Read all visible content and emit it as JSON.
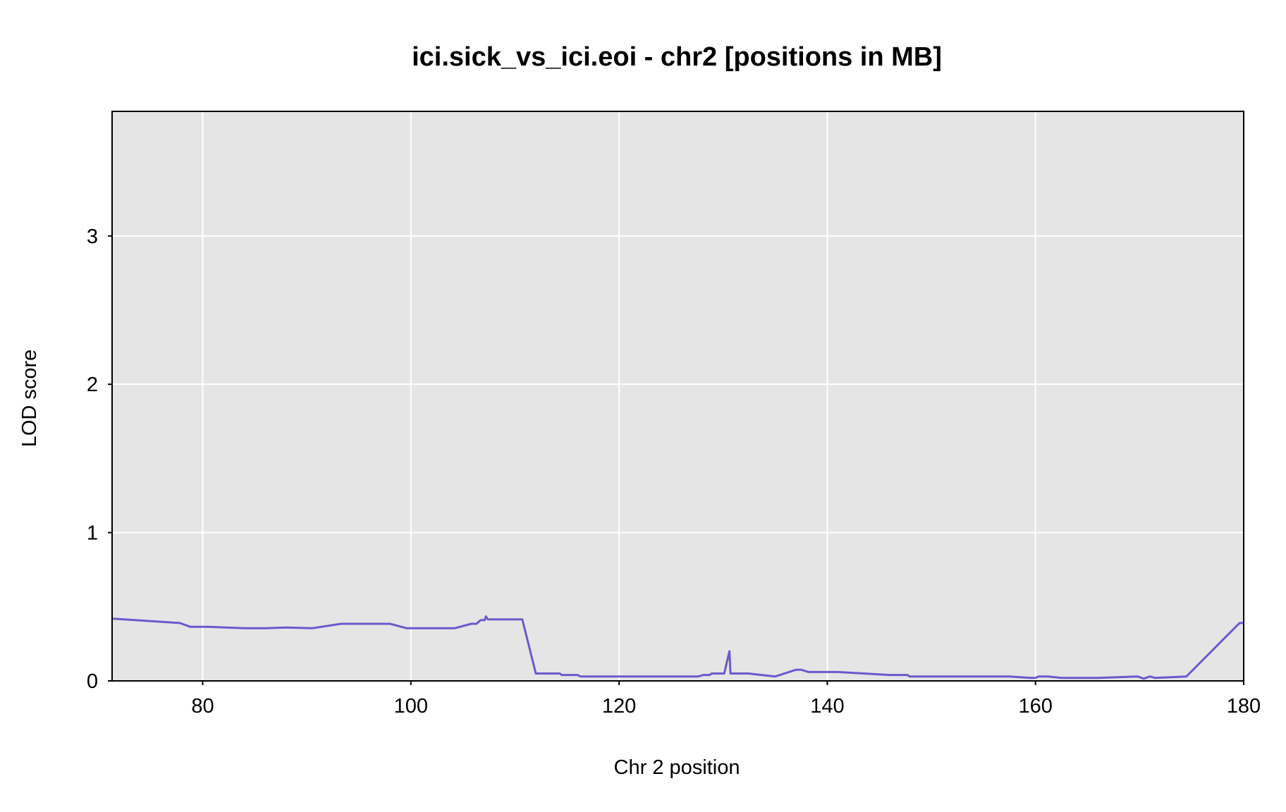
{
  "chart_data": {
    "type": "line",
    "title": "ici.sick_vs_ici.eoi - chr2 [positions in MB]",
    "xlabel": "Chr 2 position",
    "ylabel": "LOD score",
    "xlim": [
      71.3,
      180
    ],
    "ylim": [
      0,
      3.84
    ],
    "x_ticks": [
      80,
      100,
      120,
      140,
      160,
      180
    ],
    "y_ticks": [
      0,
      1,
      2,
      3
    ],
    "grid": true,
    "colors": {
      "panel_background": "#e5e5e5",
      "grid": "#ffffff",
      "line": "#6a5acd",
      "baseline": "#1c1c8c",
      "frame": "#000000"
    },
    "series": [
      {
        "values": [
          [
            71.3,
            0.42
          ],
          [
            77.8,
            0.39
          ],
          [
            78.8,
            0.365
          ],
          [
            80.5,
            0.365
          ],
          [
            84.0,
            0.355
          ],
          [
            86.0,
            0.355
          ],
          [
            88.0,
            0.36
          ],
          [
            90.5,
            0.355
          ],
          [
            93.3,
            0.385
          ],
          [
            98.0,
            0.385
          ],
          [
            99.6,
            0.355
          ],
          [
            104.2,
            0.355
          ],
          [
            105.8,
            0.385
          ],
          [
            106.3,
            0.385
          ],
          [
            106.7,
            0.41
          ],
          [
            107.1,
            0.41
          ],
          [
            107.2,
            0.435
          ],
          [
            107.4,
            0.415
          ],
          [
            110.7,
            0.415
          ],
          [
            112.0,
            0.05
          ],
          [
            114.3,
            0.05
          ],
          [
            114.5,
            0.04
          ],
          [
            116.0,
            0.04
          ],
          [
            116.3,
            0.03
          ],
          [
            127.6,
            0.03
          ],
          [
            128.1,
            0.04
          ],
          [
            128.7,
            0.04
          ],
          [
            128.9,
            0.05
          ],
          [
            130.1,
            0.05
          ],
          [
            130.6,
            0.2
          ],
          [
            130.7,
            0.05
          ],
          [
            132.4,
            0.05
          ],
          [
            135.0,
            0.03
          ],
          [
            137.0,
            0.075
          ],
          [
            137.5,
            0.075
          ],
          [
            138.2,
            0.06
          ],
          [
            141.0,
            0.06
          ],
          [
            146.0,
            0.04
          ],
          [
            147.7,
            0.04
          ],
          [
            147.9,
            0.03
          ],
          [
            157.5,
            0.03
          ],
          [
            159.5,
            0.02
          ],
          [
            160.0,
            0.02
          ],
          [
            160.3,
            0.03
          ],
          [
            161.2,
            0.03
          ],
          [
            162.5,
            0.02
          ],
          [
            166.0,
            0.02
          ],
          [
            169.8,
            0.03
          ],
          [
            170.4,
            0.015
          ],
          [
            171.0,
            0.03
          ],
          [
            171.5,
            0.02
          ],
          [
            174.5,
            0.03
          ],
          [
            179.6,
            0.39
          ],
          [
            180.0,
            0.39
          ]
        ]
      }
    ]
  }
}
